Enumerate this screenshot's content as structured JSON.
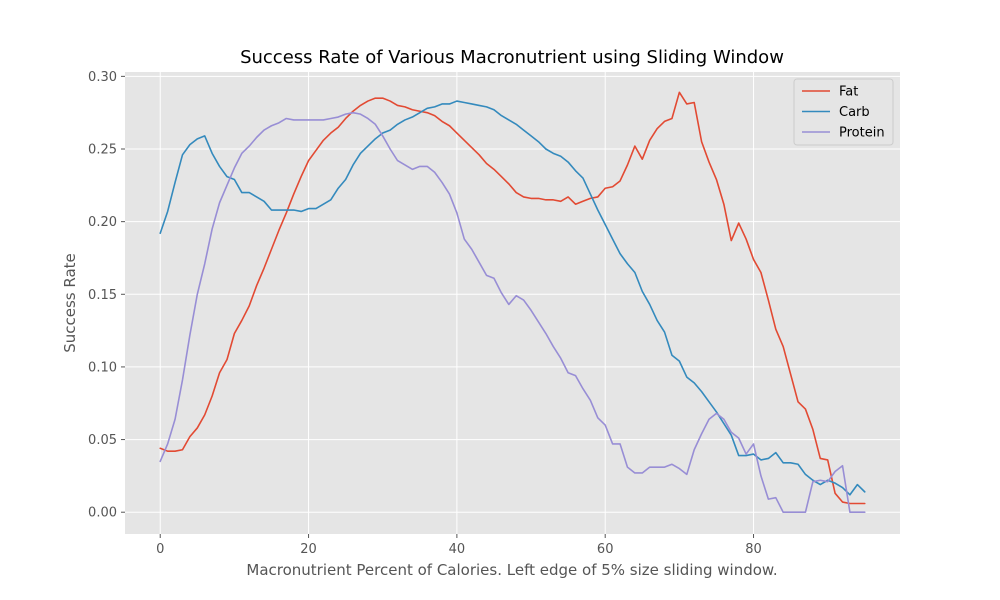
{
  "chart_data": {
    "type": "line",
    "title": "Success Rate of Various Macronutrient using Sliding Window",
    "xlabel": "Macronutrient Percent of Calories. Left edge of 5% size sliding window.",
    "ylabel": "Success Rate",
    "xlim": [
      -4.75,
      99.75
    ],
    "ylim": [
      -0.015,
      0.303
    ],
    "xticks": [
      0,
      20,
      40,
      60,
      80
    ],
    "yticks": [
      0.0,
      0.05,
      0.1,
      0.15,
      0.2,
      0.25,
      0.3
    ],
    "ytick_labels": [
      "0.00",
      "0.05",
      "0.10",
      "0.15",
      "0.20",
      "0.25",
      "0.30"
    ],
    "grid": true,
    "legend_position": "top-right",
    "x": [
      0,
      1,
      2,
      3,
      4,
      5,
      6,
      7,
      8,
      9,
      10,
      11,
      12,
      13,
      14,
      15,
      16,
      17,
      18,
      19,
      20,
      21,
      22,
      23,
      24,
      25,
      26,
      27,
      28,
      29,
      30,
      31,
      32,
      33,
      34,
      35,
      36,
      37,
      38,
      39,
      40,
      41,
      42,
      43,
      44,
      45,
      46,
      47,
      48,
      49,
      50,
      51,
      52,
      53,
      54,
      55,
      56,
      57,
      58,
      59,
      60,
      61,
      62,
      63,
      64,
      65,
      66,
      67,
      68,
      69,
      70,
      71,
      72,
      73,
      74,
      75,
      76,
      77,
      78,
      79,
      80,
      81,
      82,
      83,
      84,
      85,
      86,
      87,
      88,
      89,
      90,
      91,
      92,
      93,
      94,
      95
    ],
    "series": [
      {
        "name": "Fat",
        "color": "#e24a33",
        "values": [
          0.044,
          0.042,
          0.042,
          0.043,
          0.052,
          0.058,
          0.067,
          0.08,
          0.096,
          0.105,
          0.123,
          0.132,
          0.142,
          0.156,
          0.168,
          0.181,
          0.194,
          0.206,
          0.219,
          0.231,
          0.242,
          0.249,
          0.256,
          0.261,
          0.265,
          0.271,
          0.276,
          0.28,
          0.283,
          0.285,
          0.285,
          0.283,
          0.28,
          0.279,
          0.277,
          0.276,
          0.275,
          0.273,
          0.269,
          0.266,
          0.261,
          0.256,
          0.251,
          0.246,
          0.24,
          0.236,
          0.231,
          0.226,
          0.22,
          0.217,
          0.216,
          0.216,
          0.215,
          0.215,
          0.214,
          0.217,
          0.212,
          0.214,
          0.216,
          0.217,
          0.223,
          0.224,
          0.228,
          0.239,
          0.252,
          0.243,
          0.256,
          0.264,
          0.269,
          0.271,
          0.289,
          0.281,
          0.282,
          0.255,
          0.241,
          0.229,
          0.212,
          0.187,
          0.199,
          0.188,
          0.174,
          0.165,
          0.146,
          0.126,
          0.114,
          0.095,
          0.076,
          0.071,
          0.057,
          0.037,
          0.036,
          0.013,
          0.007,
          0.006,
          0.006,
          0.006
        ]
      },
      {
        "name": "Carb",
        "color": "#348abd",
        "values": [
          0.192,
          0.207,
          0.227,
          0.246,
          0.253,
          0.257,
          0.259,
          0.247,
          0.238,
          0.231,
          0.229,
          0.22,
          0.22,
          0.217,
          0.214,
          0.208,
          0.208,
          0.208,
          0.208,
          0.207,
          0.209,
          0.209,
          0.212,
          0.215,
          0.223,
          0.229,
          0.239,
          0.247,
          0.252,
          0.257,
          0.261,
          0.263,
          0.267,
          0.27,
          0.272,
          0.275,
          0.278,
          0.279,
          0.281,
          0.281,
          0.283,
          0.282,
          0.281,
          0.28,
          0.279,
          0.277,
          0.273,
          0.27,
          0.267,
          0.263,
          0.259,
          0.255,
          0.25,
          0.247,
          0.245,
          0.241,
          0.235,
          0.23,
          0.219,
          0.208,
          0.198,
          0.188,
          0.178,
          0.171,
          0.165,
          0.152,
          0.143,
          0.132,
          0.124,
          0.108,
          0.104,
          0.093,
          0.089,
          0.083,
          0.076,
          0.069,
          0.061,
          0.053,
          0.039,
          0.039,
          0.04,
          0.036,
          0.037,
          0.041,
          0.034,
          0.034,
          0.033,
          0.026,
          0.022,
          0.019,
          0.022,
          0.02,
          0.017,
          0.012,
          0.019,
          0.014
        ]
      },
      {
        "name": "Protein",
        "color": "#988ed5",
        "values": [
          0.035,
          0.047,
          0.064,
          0.091,
          0.122,
          0.15,
          0.171,
          0.195,
          0.213,
          0.225,
          0.237,
          0.247,
          0.252,
          0.258,
          0.263,
          0.266,
          0.268,
          0.271,
          0.27,
          0.27,
          0.27,
          0.27,
          0.27,
          0.271,
          0.272,
          0.274,
          0.275,
          0.274,
          0.271,
          0.267,
          0.259,
          0.25,
          0.242,
          0.239,
          0.236,
          0.238,
          0.238,
          0.234,
          0.227,
          0.219,
          0.206,
          0.188,
          0.181,
          0.172,
          0.163,
          0.161,
          0.151,
          0.143,
          0.149,
          0.146,
          0.139,
          0.131,
          0.123,
          0.114,
          0.106,
          0.096,
          0.094,
          0.085,
          0.077,
          0.065,
          0.06,
          0.047,
          0.047,
          0.031,
          0.027,
          0.027,
          0.031,
          0.031,
          0.031,
          0.033,
          0.03,
          0.026,
          0.043,
          0.054,
          0.064,
          0.068,
          0.064,
          0.055,
          0.051,
          0.04,
          0.047,
          0.025,
          0.009,
          0.01,
          0.0,
          0.0,
          0.0,
          0.0,
          0.021,
          0.022,
          0.021,
          0.028,
          0.032,
          0.0,
          0.0,
          0.0
        ]
      }
    ]
  }
}
